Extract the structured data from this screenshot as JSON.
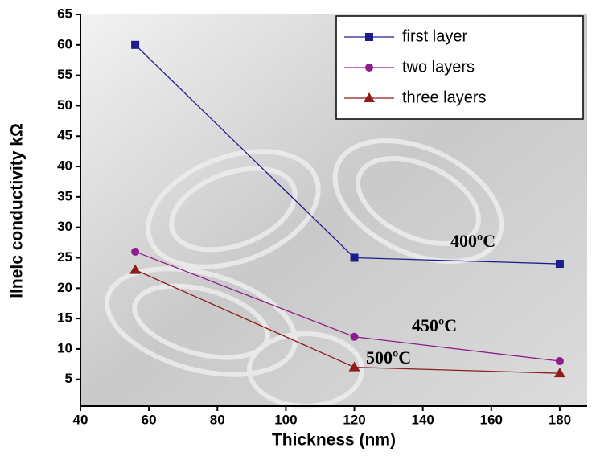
{
  "chart_data": {
    "type": "line",
    "x_label": "Thickness (nm)",
    "y_label": "Ilnelc conductivity kΩ",
    "x": [
      56,
      120,
      180
    ],
    "series": [
      {
        "name": "first layer",
        "color": "#1c1c8e",
        "marker": "square",
        "values": [
          60,
          25,
          24
        ]
      },
      {
        "name": "two layers",
        "color": "#8e1c8e",
        "marker": "circle",
        "values": [
          26,
          12,
          8
        ]
      },
      {
        "name": "three layers",
        "color": "#8e1c1c",
        "marker": "triangle",
        "values": [
          23,
          7,
          6
        ]
      }
    ],
    "annotations": [
      "400ºC",
      "450ºC",
      "500ºC"
    ],
    "xlim": [
      40,
      188
    ],
    "xticks": [
      40,
      60,
      80,
      100,
      120,
      140,
      160,
      180
    ],
    "ylim": [
      0.6,
      65
    ],
    "yticks": [
      5,
      10,
      15,
      20,
      25,
      30,
      35,
      40,
      45,
      50,
      55,
      60,
      65
    ],
    "legend": "upper-right"
  }
}
